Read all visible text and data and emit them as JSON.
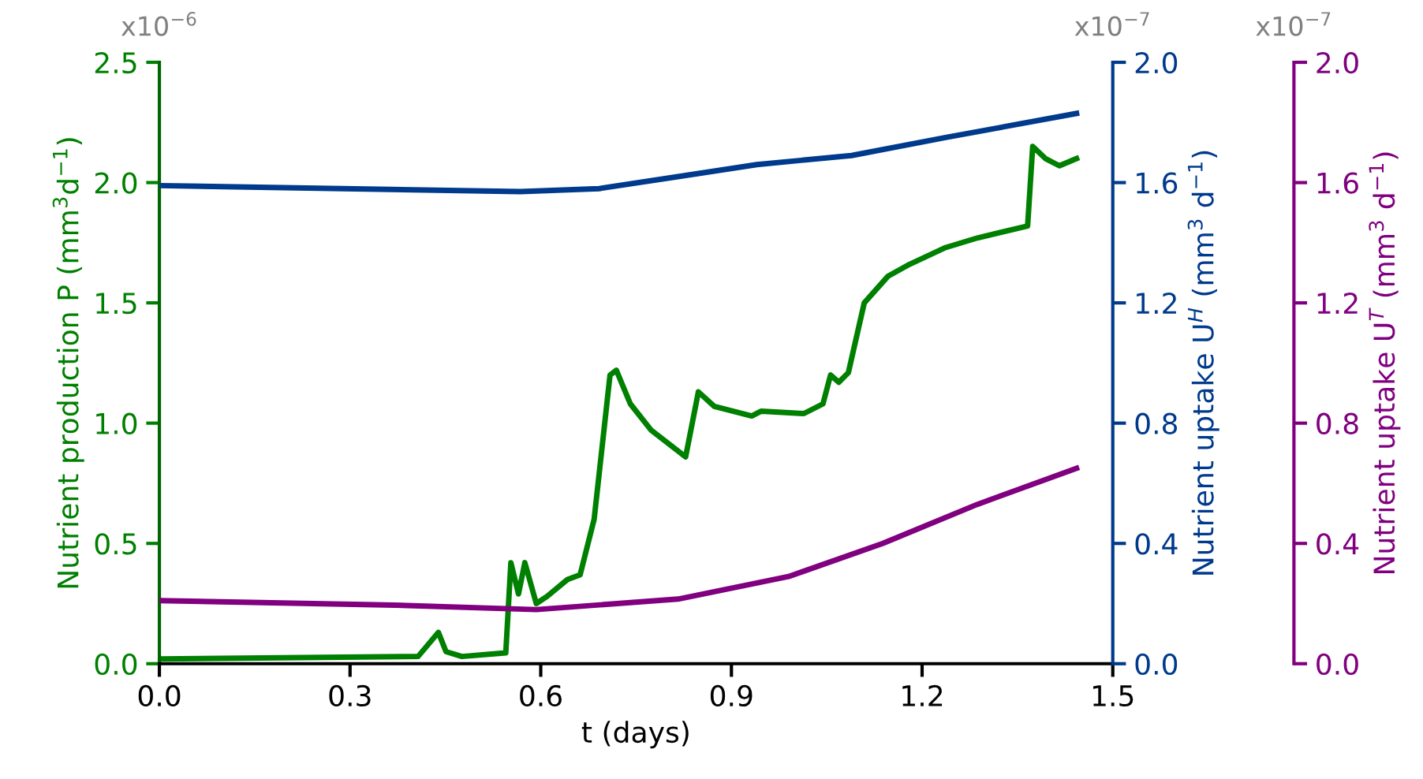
{
  "chart_data": {
    "type": "line",
    "xlabel": "t (days)",
    "ylabel": "Nutrient production P (mm$^{3}$d$^{−1}$)",
    "y2label": "Nutrient uptake U$^{H}$ (mm$^{3}$ d$^{−1}$)",
    "y3label": "Nutrient uptake U$^{T}$ (mm$^{3}$ d$^{−1}$)",
    "annotations": [
      "x10$^{−6}$",
      "x10$^{−7}$",
      "x10$^{−7}$"
    ],
    "xlim": [
      0,
      1.5
    ],
    "xticks": [
      {
        "value": 0,
        "label": "0.0"
      },
      0.3,
      0.6,
      0.9,
      1.2,
      1.5
    ],
    "ylim": [
      0,
      2.5
    ],
    "yticks": [
      {
        "value": 0,
        "label": "0.0"
      },
      0.5,
      {
        "value": 1,
        "label": "1.0"
      },
      1.5,
      {
        "value": 2,
        "label": "2.0"
      },
      2.5
    ],
    "y2lim": [
      0,
      2
    ],
    "y2ticks": [
      {
        "value": 0,
        "label": "0.0"
      },
      0.4,
      0.8,
      1.2,
      1.6,
      {
        "value": 2,
        "label": "2.0"
      }
    ],
    "y3lim": [
      0,
      2
    ],
    "y3ticks": [
      {
        "value": 0,
        "label": "0.0"
      },
      0.4,
      0.8,
      1.2,
      1.6,
      {
        "value": 2,
        "label": "2.0"
      }
    ],
    "grid": false,
    "legend": false,
    "marker": "none",
    "line_style": "solid",
    "series": [
      {
        "color": "#008000",
        "axis": "y",
        "x": [
          0,
          0.407,
          0.439,
          0.451,
          0.476,
          0.545,
          0.553,
          0.565,
          0.575,
          0.593,
          0.61,
          0.642,
          0.662,
          0.684,
          0.709,
          0.719,
          0.741,
          0.774,
          0.828,
          0.848,
          0.873,
          0.932,
          0.947,
          1.014,
          1.044,
          1.056,
          1.069,
          1.084,
          1.109,
          1.146,
          1.18,
          1.237,
          1.287,
          1.366,
          1.374,
          1.394,
          1.416,
          1.443
        ],
        "values": [
          0.02,
          0.03,
          0.13,
          0.05,
          0.03,
          0.045,
          0.42,
          0.29,
          0.42,
          0.25,
          0.28,
          0.35,
          0.37,
          0.6,
          1.2,
          1.22,
          1.08,
          0.97,
          0.86,
          1.13,
          1.07,
          1.03,
          1.05,
          1.04,
          1.08,
          1.2,
          1.17,
          1.21,
          1.5,
          1.61,
          1.66,
          1.73,
          1.77,
          1.82,
          2.15,
          2.1,
          2.07,
          2.1
        ]
      },
      {
        "color": "#003a8c",
        "axis": "y2",
        "x": [
          0,
          0.568,
          0.692,
          0.816,
          0.94,
          1.089,
          1.237,
          1.443
        ],
        "values": [
          1.59,
          1.57,
          1.58,
          1.62,
          1.66,
          1.69,
          1.75,
          1.83
        ]
      },
      {
        "color": "#800080",
        "axis": "y3",
        "x": [
          0,
          0.37,
          0.593,
          0.816,
          0.99,
          1.138,
          1.287,
          1.443
        ],
        "values": [
          0.21,
          0.195,
          0.18,
          0.215,
          0.29,
          0.4,
          0.53,
          0.65
        ]
      }
    ]
  }
}
